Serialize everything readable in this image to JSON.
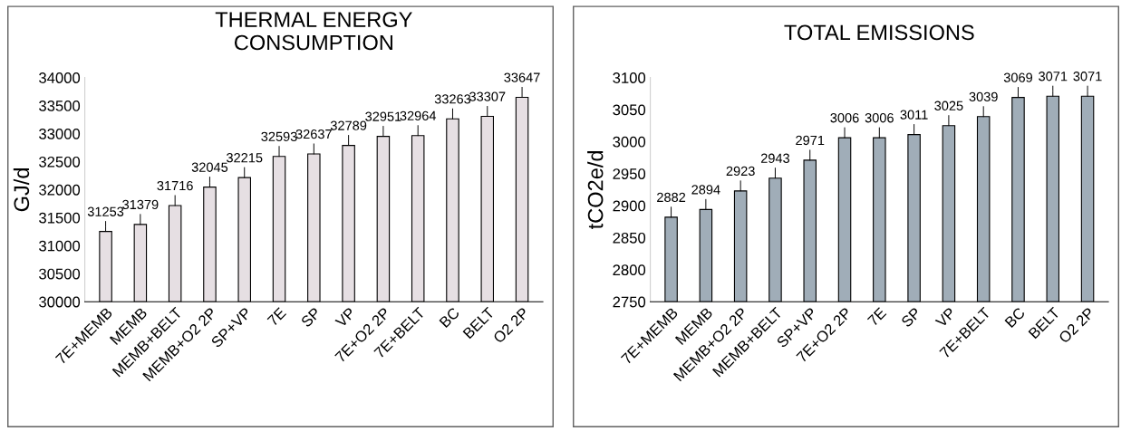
{
  "chart_data": [
    {
      "type": "bar",
      "title": "THERMAL ENERGY\nCONSUMPTION",
      "ylabel": "GJ/d",
      "categories": [
        "7E+MEMB",
        "MEMB",
        "MEMB+BELT",
        "MEMB+O2 2P",
        "SP+VP",
        "7E",
        "SP",
        "VP",
        "7E+O2 2P",
        "7E+BELT",
        "BC",
        "BELT",
        "O2 2P"
      ],
      "values": [
        31253,
        31379,
        31716,
        32045,
        32215,
        32593,
        32637,
        32789,
        32951,
        32964,
        33263,
        33307,
        33647
      ],
      "color": "#e6dfe3",
      "ylim": [
        30000,
        34000
      ],
      "yticks": [
        30000,
        30500,
        31000,
        31500,
        32000,
        32500,
        33000,
        33500,
        34000
      ],
      "data_labels": true,
      "grid": false,
      "legend": false
    },
    {
      "type": "bar",
      "title": "TOTAL EMISSIONS",
      "ylabel": "tCO2e/d",
      "categories": [
        "7E+MEMB",
        "MEMB",
        "MEMB+O2 2P",
        "MEMB+BELT",
        "SP+VP",
        "7E+O2 2P",
        "7E",
        "SP",
        "VP",
        "7E+BELT",
        "BC",
        "BELT",
        "O2 2P"
      ],
      "values": [
        2882,
        2894,
        2923,
        2943,
        2971,
        3006,
        3006,
        3011,
        3025,
        3039,
        3069,
        3071,
        3071
      ],
      "color": "#a0adb8",
      "ylim": [
        2750,
        3100
      ],
      "yticks": [
        2750,
        2800,
        2850,
        2900,
        2950,
        3000,
        3050,
        3100
      ],
      "data_labels": true,
      "grid": false,
      "legend": false
    }
  ]
}
